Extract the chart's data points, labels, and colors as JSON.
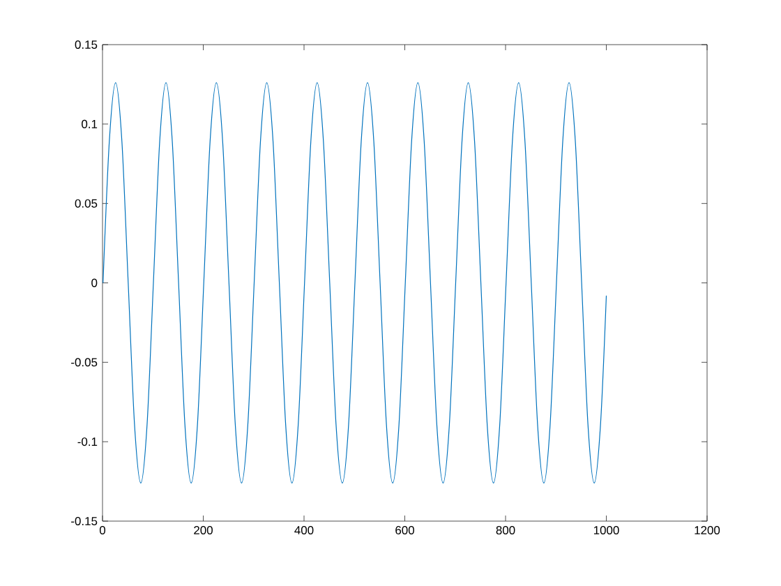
{
  "chart_data": {
    "type": "line",
    "x": [
      1,
      13.5,
      26,
      38.5,
      51,
      63.5,
      76,
      88.5,
      101,
      113.5,
      126,
      138.5,
      151,
      163.5,
      176,
      188.5,
      201,
      213.5,
      226,
      238.5,
      251,
      263.5,
      276,
      288.5,
      301,
      313.5,
      326,
      338.5,
      351,
      363.5,
      376,
      388.5,
      401,
      413.5,
      426,
      438.5,
      451,
      463.5,
      476,
      488.5,
      501,
      513.5,
      526,
      538.5,
      551,
      563.5,
      576,
      588.5,
      601,
      613.5,
      626,
      638.5,
      651,
      663.5,
      676,
      688.5,
      701,
      713.5,
      726,
      738.5,
      751,
      763.5,
      776,
      788.5,
      801,
      813.5,
      826,
      838.5,
      851,
      863.5,
      876,
      888.5,
      901,
      913.5,
      926,
      938.5,
      951,
      963.5,
      976,
      988.5,
      1000
    ],
    "series": [
      {
        "color": "#0072bd",
        "values": [
          0,
          0.089,
          0.126,
          0.089,
          0,
          -0.089,
          -0.126,
          -0.089,
          0,
          0.089,
          0.126,
          0.089,
          0,
          -0.089,
          -0.126,
          -0.089,
          0,
          0.089,
          0.126,
          0.089,
          0,
          -0.089,
          -0.126,
          -0.089,
          0,
          0.089,
          0.126,
          0.089,
          0,
          -0.089,
          -0.126,
          -0.089,
          0,
          0.089,
          0.126,
          0.089,
          0,
          -0.089,
          -0.126,
          -0.089,
          0,
          0.089,
          0.126,
          0.089,
          0,
          -0.089,
          -0.126,
          -0.089,
          0,
          0.089,
          0.126,
          0.089,
          0,
          -0.089,
          -0.126,
          -0.089,
          0,
          0.089,
          0.126,
          0.089,
          0,
          -0.089,
          -0.126,
          -0.089,
          0,
          0.089,
          0.126,
          0.089,
          0,
          -0.089,
          -0.126,
          -0.089,
          0,
          0.089,
          0.126,
          0.089,
          0,
          -0.089,
          -0.126,
          -0.089,
          -0.008
        ]
      }
    ],
    "xlim": [
      0,
      1200
    ],
    "ylim": [
      -0.15,
      0.15
    ],
    "xticks": [
      0,
      200,
      400,
      600,
      800,
      1000,
      1200
    ],
    "yticks": [
      -0.15,
      -0.1,
      -0.05,
      0,
      0.05,
      0.1,
      0.15
    ],
    "grid": false,
    "marker": "none",
    "line_style": "solid"
  }
}
